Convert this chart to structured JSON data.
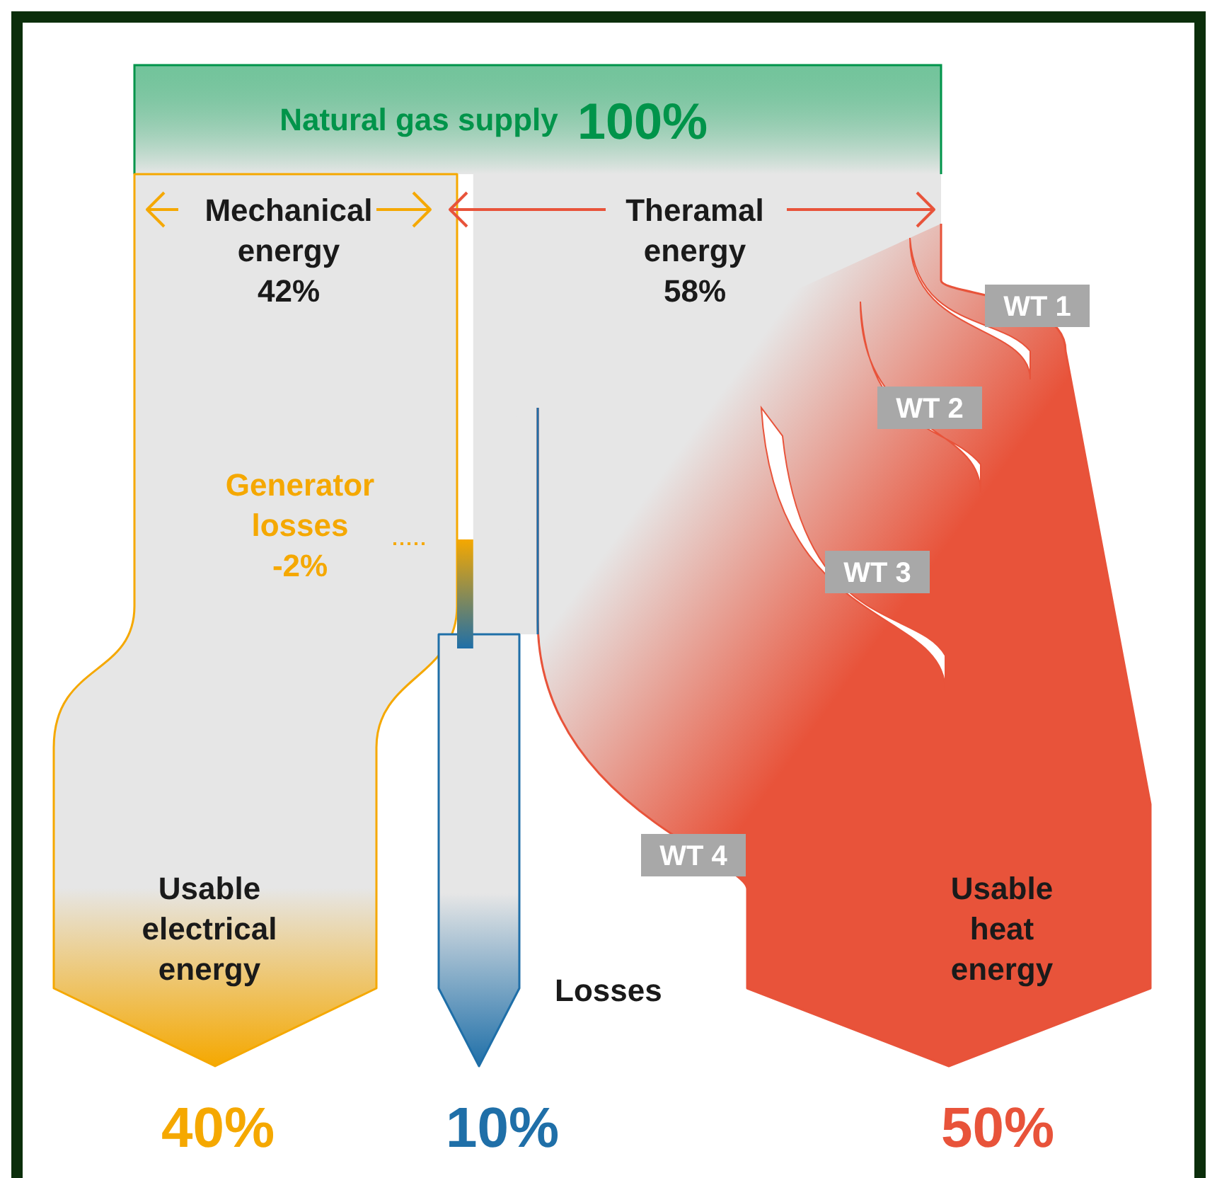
{
  "chart_data": {
    "type": "other",
    "categories": [
      "Natural gas supply",
      "Mechanical energy",
      "Theramal energy",
      "Generator losses",
      "Usable electrical energy",
      "Losses",
      "Usable heat energy"
    ],
    "values": [
      100,
      42,
      58,
      -2,
      40,
      10,
      50
    ],
    "value_labels": [
      "100%",
      "42%",
      "58%",
      "-2%",
      "40%",
      "10%",
      "50%"
    ],
    "colors": [
      "#00944a",
      "#f5a800",
      "#e6e6e6",
      "#f5a800",
      "#f5a800",
      "#1f6fa8",
      "#e8533a"
    ],
    "annotations": [
      "WT 1",
      "WT 2",
      "WT 3",
      "WT 4"
    ]
  }
}
